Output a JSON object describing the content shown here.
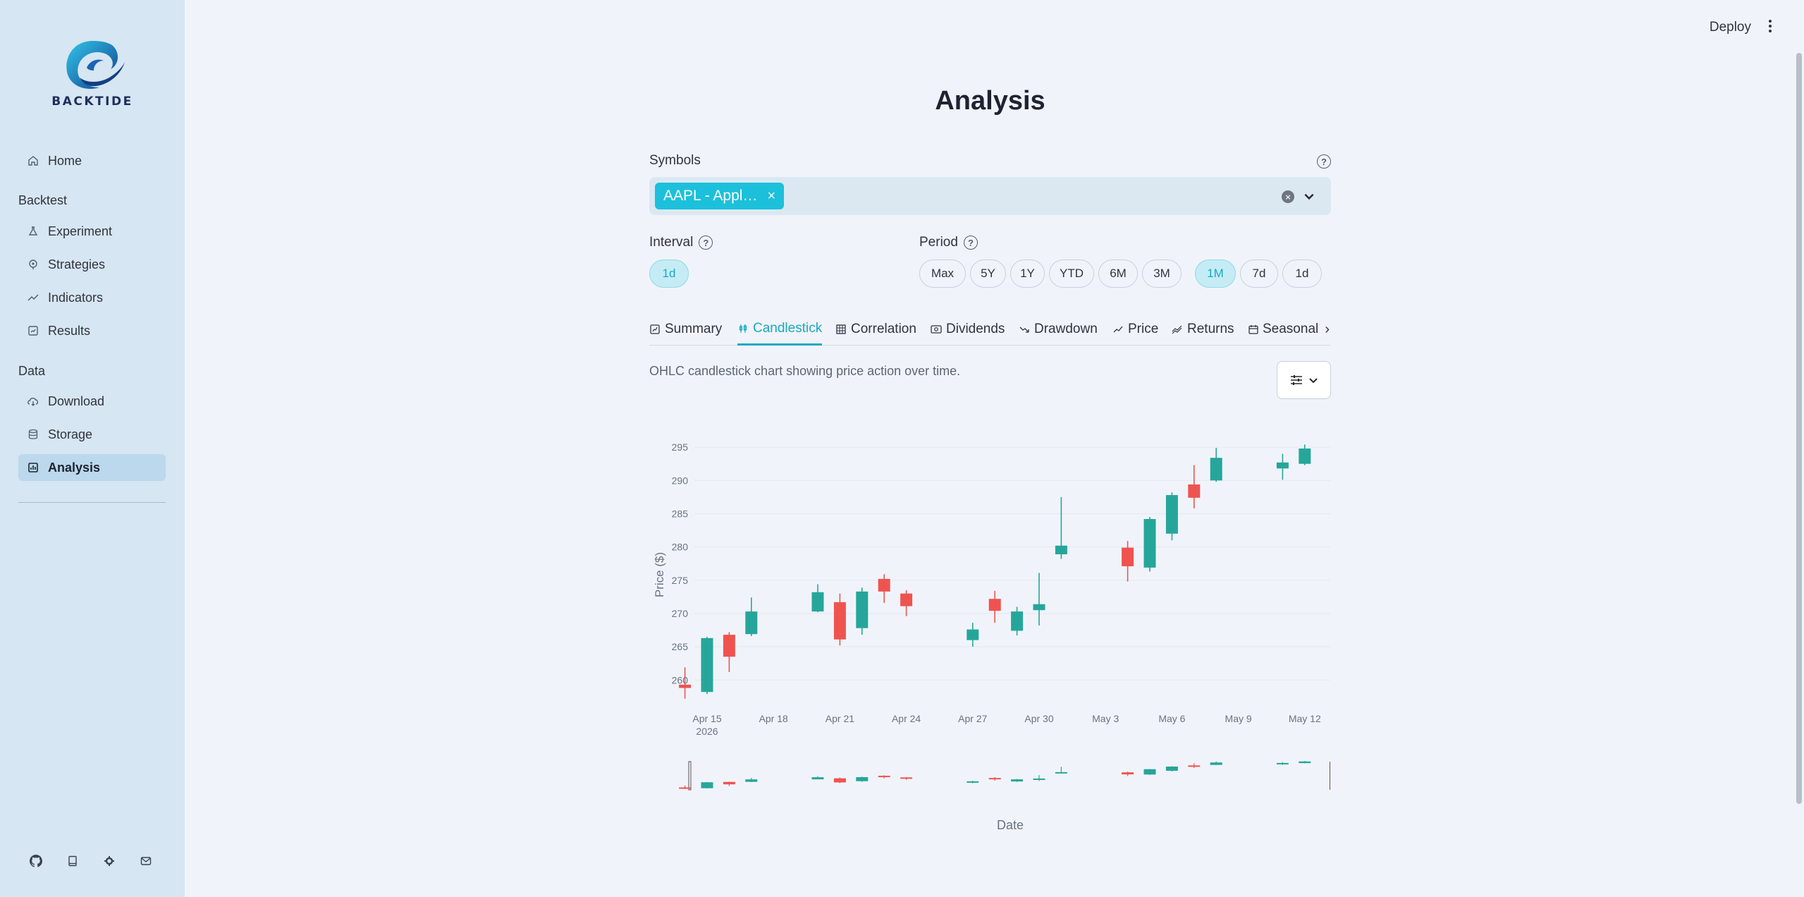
{
  "app": {
    "logo_text": "BACKTIDE"
  },
  "header": {
    "deploy_label": "Deploy"
  },
  "sidebar": {
    "home": "Home",
    "section_backtest": "Backtest",
    "experiment": "Experiment",
    "strategies": "Strategies",
    "indicators": "Indicators",
    "results": "Results",
    "section_data": "Data",
    "download": "Download",
    "storage": "Storage",
    "analysis": "Analysis",
    "active": "Analysis",
    "footer_icons": [
      "github-icon",
      "book-icon",
      "settings-icon",
      "mail-icon"
    ]
  },
  "page": {
    "title": "Analysis",
    "symbols_label": "Symbols",
    "symbol_chip": "AAPL - Appl…",
    "interval_label": "Interval",
    "interval_selected": "1d",
    "period_label": "Period",
    "periods": [
      "Max",
      "5Y",
      "1Y",
      "YTD",
      "6M",
      "3M",
      "1M",
      "7d",
      "1d"
    ],
    "period_selected": "1M",
    "tabs": [
      "Summary",
      "Candlestick",
      "Correlation",
      "Dividends",
      "Drawdown",
      "Price",
      "Returns",
      "Seasonali"
    ],
    "active_tab": "Candlestick",
    "caption": "OHLC candlestick chart showing price action over time."
  },
  "colors": {
    "accent": "#1aa9c3",
    "up": "#26a69a",
    "down": "#ef5350",
    "sidebar": "#d6e6f2"
  },
  "chart_data": {
    "type": "candlestick",
    "title": "",
    "xlabel": "Date",
    "ylabel": "Price ($)",
    "ylim": [
      256,
      296.5
    ],
    "y_ticks": [
      260,
      265,
      270,
      275,
      280,
      285,
      290,
      295
    ],
    "x_ticks": [
      "Apr 15",
      "Apr 18",
      "Apr 21",
      "Apr 24",
      "Apr 27",
      "Apr 30",
      "May 3",
      "May 6",
      "May 9",
      "May 12"
    ],
    "x_year": "2026",
    "candles": [
      {
        "date": "2026-04-14",
        "open": 259.3,
        "high": 261.9,
        "low": 257.2,
        "close": 258.8
      },
      {
        "date": "2026-04-15",
        "open": 258.2,
        "high": 266.5,
        "low": 257.9,
        "close": 266.3
      },
      {
        "date": "2026-04-16",
        "open": 266.8,
        "high": 267.2,
        "low": 261.2,
        "close": 263.5
      },
      {
        "date": "2026-04-17",
        "open": 266.9,
        "high": 272.4,
        "low": 266.6,
        "close": 270.3
      },
      {
        "date": "2026-04-20",
        "open": 270.3,
        "high": 274.4,
        "low": 270.2,
        "close": 273.2
      },
      {
        "date": "2026-04-21",
        "open": 271.7,
        "high": 273.0,
        "low": 265.2,
        "close": 266.1
      },
      {
        "date": "2026-04-22",
        "open": 267.8,
        "high": 273.9,
        "low": 266.8,
        "close": 273.3
      },
      {
        "date": "2026-04-23",
        "open": 275.2,
        "high": 275.9,
        "low": 271.6,
        "close": 273.3
      },
      {
        "date": "2026-04-24",
        "open": 273.0,
        "high": 273.5,
        "low": 269.6,
        "close": 271.1
      },
      {
        "date": "2026-04-27",
        "open": 266.0,
        "high": 268.6,
        "low": 265.0,
        "close": 267.6
      },
      {
        "date": "2026-04-28",
        "open": 272.2,
        "high": 273.4,
        "low": 268.6,
        "close": 270.4
      },
      {
        "date": "2026-04-29",
        "open": 267.4,
        "high": 271.0,
        "low": 266.7,
        "close": 270.3
      },
      {
        "date": "2026-04-30",
        "open": 270.5,
        "high": 276.1,
        "low": 268.2,
        "close": 271.4
      },
      {
        "date": "2026-05-01",
        "open": 278.9,
        "high": 287.5,
        "low": 278.2,
        "close": 280.2
      },
      {
        "date": "2026-05-04",
        "open": 279.9,
        "high": 280.9,
        "low": 274.8,
        "close": 277.1
      },
      {
        "date": "2026-05-05",
        "open": 276.9,
        "high": 284.5,
        "low": 276.3,
        "close": 284.2
      },
      {
        "date": "2026-05-06",
        "open": 282.0,
        "high": 288.2,
        "low": 281.0,
        "close": 287.8
      },
      {
        "date": "2026-05-07",
        "open": 289.4,
        "high": 292.3,
        "low": 285.8,
        "close": 287.4
      },
      {
        "date": "2026-05-08",
        "open": 290.0,
        "high": 294.9,
        "low": 289.8,
        "close": 293.4
      },
      {
        "date": "2026-05-11",
        "open": 291.8,
        "high": 294.0,
        "low": 290.1,
        "close": 292.7
      },
      {
        "date": "2026-05-12",
        "open": 292.5,
        "high": 295.4,
        "low": 292.3,
        "close": 294.8
      }
    ],
    "range_slider": true
  }
}
